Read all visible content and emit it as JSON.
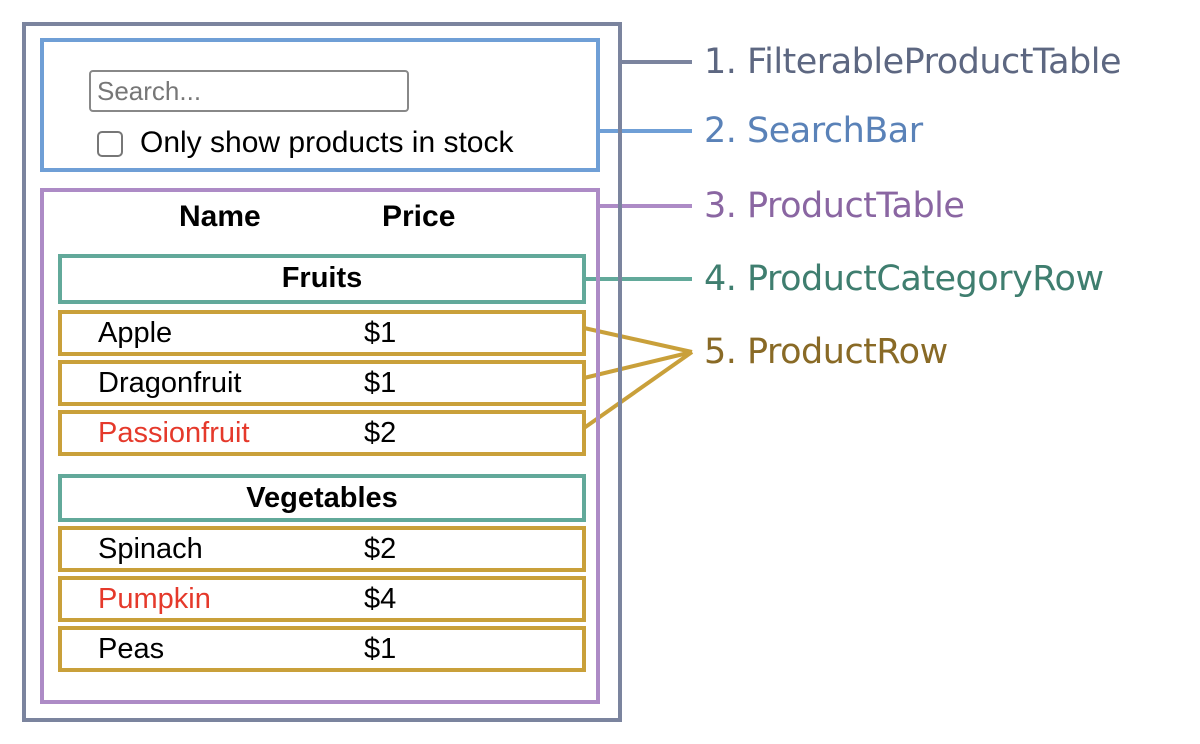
{
  "colors": {
    "filterable_product_table": "#7b849e",
    "search_bar": "#6f9fd6",
    "product_table": "#ad8bc6",
    "product_category_row": "#62a99a",
    "product_row": "#c9a03a",
    "out_of_stock_text": "#e5392b"
  },
  "search": {
    "placeholder": "Search...",
    "value": ""
  },
  "stock_checkbox": {
    "label": "Only show products in stock",
    "checked": false
  },
  "table": {
    "headers": {
      "name": "Name",
      "price": "Price"
    },
    "categories": [
      {
        "name": "Fruits",
        "products": [
          {
            "name": "Apple",
            "price": "$1",
            "stocked": true
          },
          {
            "name": "Dragonfruit",
            "price": "$1",
            "stocked": true
          },
          {
            "name": "Passionfruit",
            "price": "$2",
            "stocked": false
          }
        ]
      },
      {
        "name": "Vegetables",
        "products": [
          {
            "name": "Spinach",
            "price": "$2",
            "stocked": true
          },
          {
            "name": "Pumpkin",
            "price": "$4",
            "stocked": false
          },
          {
            "name": "Peas",
            "price": "$1",
            "stocked": true
          }
        ]
      }
    ]
  },
  "labels": [
    {
      "text": "1. FilterableProductTable",
      "color": "#5d6781"
    },
    {
      "text": "2. SearchBar",
      "color": "#5a82b8"
    },
    {
      "text": "3. ProductTable",
      "color": "#8a66a2"
    },
    {
      "text": "4. ProductCategoryRow",
      "color": "#3f7e6f"
    },
    {
      "text": "5. ProductRow",
      "color": "#896a26"
    }
  ]
}
